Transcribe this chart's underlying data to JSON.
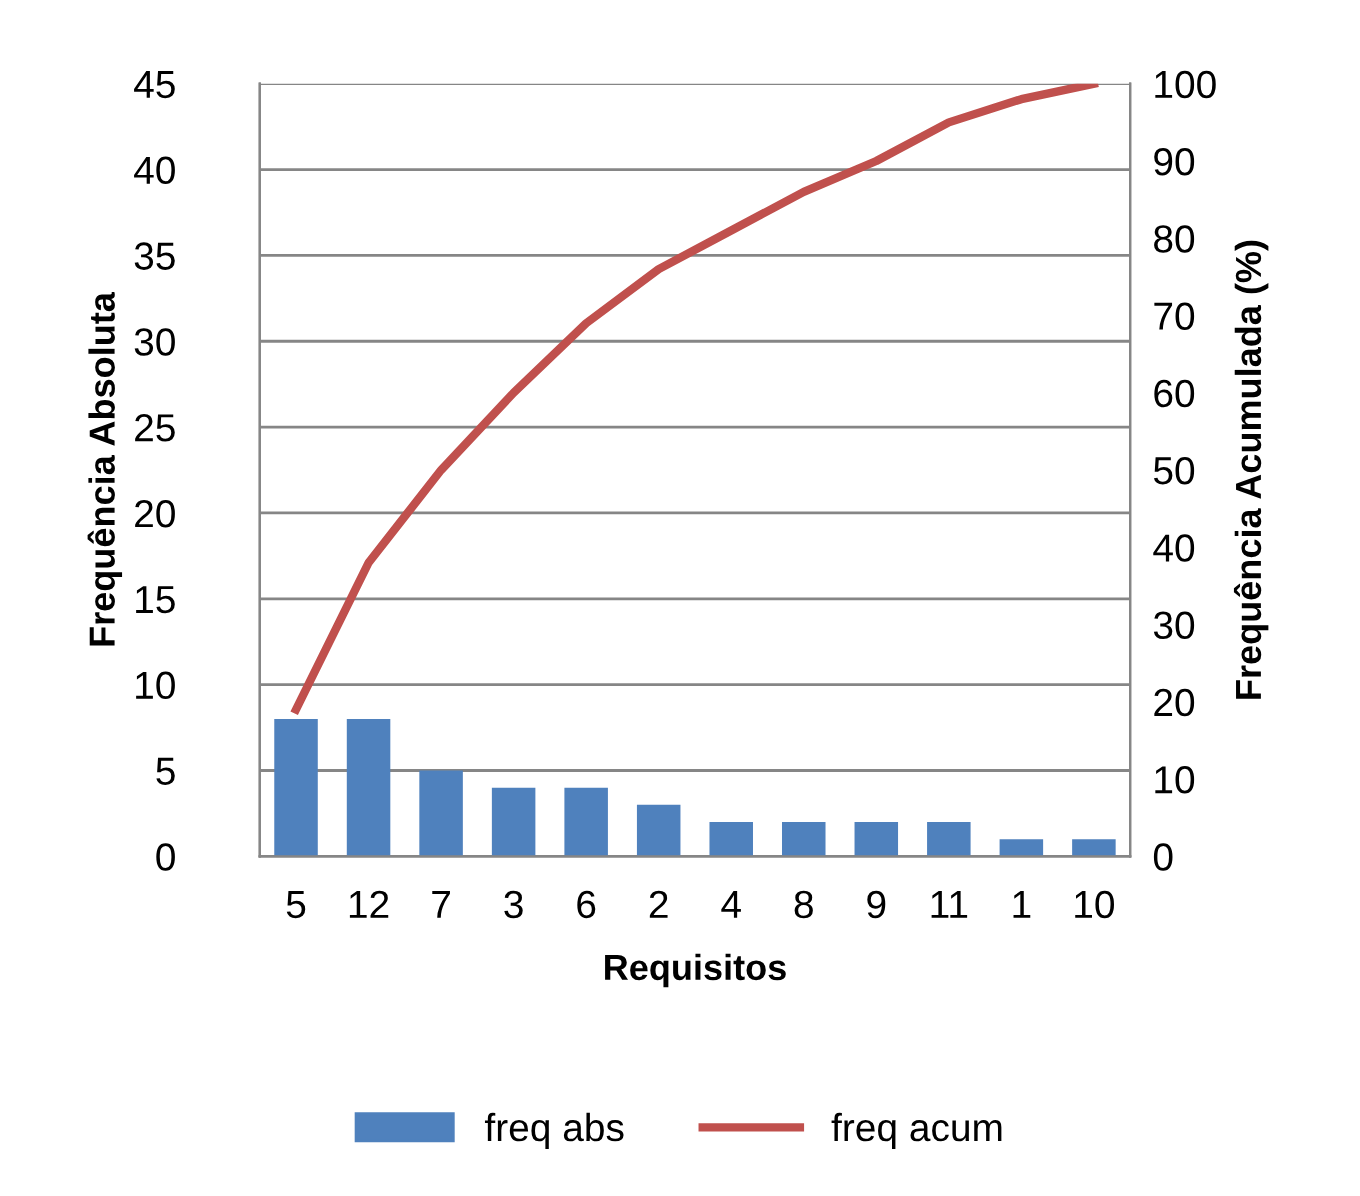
{
  "chart_data": {
    "type": "bar",
    "xlabel": "Requisitos",
    "ylabel": "Frequência Absoluta",
    "y2label": "Frequência Acumulada (%)",
    "categories": [
      "5",
      "12",
      "7",
      "3",
      "6",
      "2",
      "4",
      "8",
      "9",
      "11",
      "1",
      "10"
    ],
    "series": [
      {
        "name": "freq abs",
        "color": "#4f81bd",
        "values": [
          8,
          8,
          5,
          4,
          4,
          3,
          2,
          2,
          2,
          2,
          1,
          1
        ]
      },
      {
        "name": "freq acum",
        "type": "line",
        "axis": "y2",
        "color": "#c0504d",
        "values": [
          19,
          38,
          50,
          60,
          69,
          76,
          81,
          86,
          90,
          95,
          98,
          100
        ]
      }
    ],
    "ylim": [
      0,
      45
    ],
    "yticks": [
      0,
      5,
      10,
      15,
      20,
      25,
      30,
      35,
      40,
      45
    ],
    "y2lim": [
      0,
      100
    ],
    "y2ticks": [
      0,
      10,
      20,
      30,
      40,
      50,
      60,
      70,
      80,
      90,
      100
    ],
    "grid": "y",
    "legend": "bottom",
    "marker": "none",
    "line_style": "solid"
  }
}
